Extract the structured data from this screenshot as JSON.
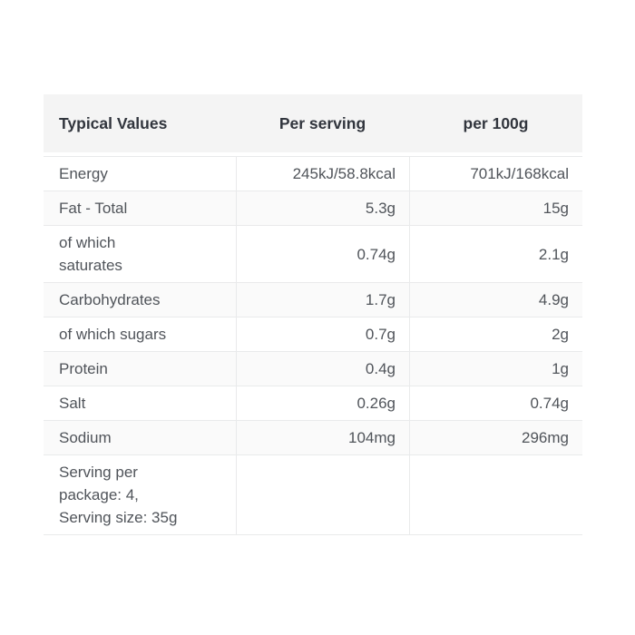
{
  "page": {
    "background": "#ffffff"
  },
  "theme": {
    "header_bg": "#f4f4f4",
    "stripe_bg": "#fafafa",
    "border": "#e9eaeb",
    "header_text": "#31353d",
    "body_text": "#50545a"
  },
  "table": {
    "columns": [
      {
        "label": "Typical Values"
      },
      {
        "label": "Per serving"
      },
      {
        "label": "per 100g"
      }
    ],
    "rows": [
      {
        "label": "Energy",
        "per_serving": "245kJ/58.8kcal",
        "per_100g": "701kJ/168kcal"
      },
      {
        "label": "Fat - Total",
        "per_serving": "5.3g",
        "per_100g": "15g"
      },
      {
        "label": "of which\nsaturates",
        "per_serving": "0.74g",
        "per_100g": "2.1g"
      },
      {
        "label": "Carbohydrates",
        "per_serving": "1.7g",
        "per_100g": "4.9g"
      },
      {
        "label": "of which sugars",
        "per_serving": "0.7g",
        "per_100g": "2g"
      },
      {
        "label": "Protein",
        "per_serving": "0.4g",
        "per_100g": "1g"
      },
      {
        "label": "Salt",
        "per_serving": "0.26g",
        "per_100g": "0.74g"
      },
      {
        "label": "Sodium",
        "per_serving": "104mg",
        "per_100g": "296mg"
      },
      {
        "label": "Serving per\npackage: 4,\nServing size: 35g",
        "per_serving": "",
        "per_100g": ""
      }
    ]
  }
}
